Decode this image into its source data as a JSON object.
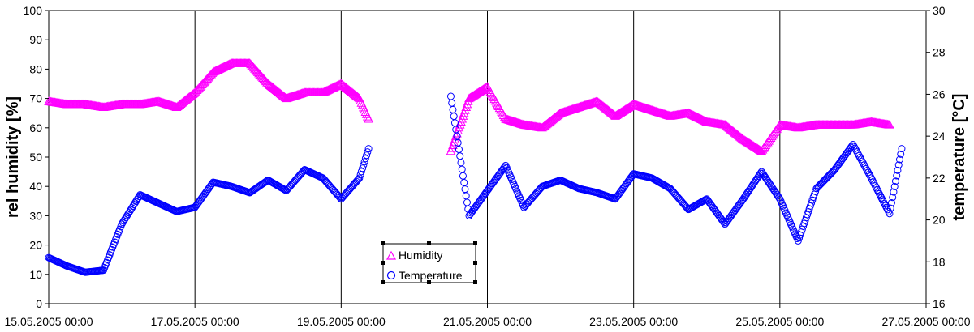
{
  "chart_data": {
    "type": "scatter",
    "title": "",
    "x_axis": {
      "type": "date",
      "range": [
        "15.05.2005 00:00",
        "27.05.2005 00:00"
      ],
      "ticks": [
        "15.05.2005 00:00",
        "17.05.2005 00:00",
        "19.05.2005 00:00",
        "21.05.2005 00:00",
        "23.05.2005 00:00",
        "25.05.2005 00:00",
        "27.05.2005 00:00"
      ],
      "gridlines": true
    },
    "y_axis_left": {
      "label": "rel humidity [%]",
      "range": [
        0,
        100
      ],
      "ticks": [
        "0",
        "10",
        "20",
        "30",
        "40",
        "50",
        "60",
        "70",
        "80",
        "90",
        "100"
      ]
    },
    "y_axis_right": {
      "label": "temperature [°C]",
      "range": [
        16,
        30
      ],
      "ticks": [
        "16",
        "18",
        "20",
        "22",
        "24",
        "26",
        "28",
        "30"
      ]
    },
    "legend": {
      "placement": "bottom-center",
      "items": [
        "Humidity",
        "Temperature"
      ]
    },
    "series": [
      {
        "name": "Humidity",
        "axis": "left",
        "marker": "triangle",
        "color": "#ff00ff",
        "points": [
          [
            "15.05.2005 00:00",
            69
          ],
          [
            "15.05.2005 06:00",
            68
          ],
          [
            "15.05.2005 12:00",
            68
          ],
          [
            "15.05.2005 18:00",
            67
          ],
          [
            "16.05.2005 00:00",
            68
          ],
          [
            "16.05.2005 06:00",
            68
          ],
          [
            "16.05.2005 12:00",
            69
          ],
          [
            "16.05.2005 18:00",
            67
          ],
          [
            "17.05.2005 00:00",
            72
          ],
          [
            "17.05.2005 06:00",
            79
          ],
          [
            "17.05.2005 12:00",
            82
          ],
          [
            "17.05.2005 18:00",
            82
          ],
          [
            "18.05.2005 00:00",
            75
          ],
          [
            "18.05.2005 06:00",
            70
          ],
          [
            "18.05.2005 12:00",
            72
          ],
          [
            "18.05.2005 18:00",
            72
          ],
          [
            "19.05.2005 00:00",
            75
          ],
          [
            "19.05.2005 06:00",
            70
          ],
          [
            "19.05.2005 09:00",
            63
          ],
          [
            "20.05.2005 12:00",
            52
          ],
          [
            "20.05.2005 18:00",
            70
          ],
          [
            "21.05.2005 00:00",
            74
          ],
          [
            "21.05.2005 06:00",
            63
          ],
          [
            "21.05.2005 12:00",
            61
          ],
          [
            "21.05.2005 18:00",
            60
          ],
          [
            "22.05.2005 00:00",
            65
          ],
          [
            "22.05.2005 06:00",
            67
          ],
          [
            "22.05.2005 12:00",
            69
          ],
          [
            "22.05.2005 18:00",
            64
          ],
          [
            "23.05.2005 00:00",
            68
          ],
          [
            "23.05.2005 06:00",
            66
          ],
          [
            "23.05.2005 12:00",
            64
          ],
          [
            "23.05.2005 18:00",
            65
          ],
          [
            "24.05.2005 00:00",
            62
          ],
          [
            "24.05.2005 06:00",
            61
          ],
          [
            "24.05.2005 12:00",
            56
          ],
          [
            "24.05.2005 18:00",
            52
          ],
          [
            "25.05.2005 00:00",
            61
          ],
          [
            "25.05.2005 06:00",
            60
          ],
          [
            "25.05.2005 12:00",
            61
          ],
          [
            "25.05.2005 18:00",
            61
          ],
          [
            "26.05.2005 00:00",
            61
          ],
          [
            "26.05.2005 06:00",
            62
          ],
          [
            "26.05.2005 12:00",
            61
          ]
        ]
      },
      {
        "name": "Temperature",
        "axis": "right",
        "marker": "circle",
        "color": "#0000ff",
        "points": [
          [
            "15.05.2005 00:00",
            18.2
          ],
          [
            "15.05.2005 06:00",
            17.8
          ],
          [
            "15.05.2005 12:00",
            17.5
          ],
          [
            "15.05.2005 18:00",
            17.6
          ],
          [
            "16.05.2005 00:00",
            19.8
          ],
          [
            "16.05.2005 06:00",
            21.2
          ],
          [
            "16.05.2005 12:00",
            20.8
          ],
          [
            "16.05.2005 18:00",
            20.4
          ],
          [
            "17.05.2005 00:00",
            20.6
          ],
          [
            "17.05.2005 06:00",
            21.8
          ],
          [
            "17.05.2005 12:00",
            21.6
          ],
          [
            "17.05.2005 18:00",
            21.3
          ],
          [
            "18.05.2005 00:00",
            21.9
          ],
          [
            "18.05.2005 06:00",
            21.4
          ],
          [
            "18.05.2005 12:00",
            22.4
          ],
          [
            "18.05.2005 18:00",
            22.0
          ],
          [
            "19.05.2005 00:00",
            21.0
          ],
          [
            "19.05.2005 06:00",
            22.0
          ],
          [
            "19.05.2005 09:00",
            23.4
          ],
          [
            "20.05.2005 12:00",
            25.9
          ],
          [
            "20.05.2005 18:00",
            20.2
          ],
          [
            "21.05.2005 00:00",
            21.4
          ],
          [
            "21.05.2005 06:00",
            22.6
          ],
          [
            "21.05.2005 12:00",
            20.6
          ],
          [
            "21.05.2005 18:00",
            21.6
          ],
          [
            "22.05.2005 00:00",
            21.9
          ],
          [
            "22.05.2005 06:00",
            21.5
          ],
          [
            "22.05.2005 12:00",
            21.3
          ],
          [
            "22.05.2005 18:00",
            21.0
          ],
          [
            "23.05.2005 00:00",
            22.2
          ],
          [
            "23.05.2005 06:00",
            22.0
          ],
          [
            "23.05.2005 12:00",
            21.5
          ],
          [
            "23.05.2005 18:00",
            20.5
          ],
          [
            "24.05.2005 00:00",
            21.0
          ],
          [
            "24.05.2005 06:00",
            19.8
          ],
          [
            "24.05.2005 12:00",
            21.0
          ],
          [
            "24.05.2005 18:00",
            22.3
          ],
          [
            "25.05.2005 00:00",
            21.0
          ],
          [
            "25.05.2005 06:00",
            19.0
          ],
          [
            "25.05.2005 12:00",
            21.5
          ],
          [
            "25.05.2005 18:00",
            22.4
          ],
          [
            "26.05.2005 00:00",
            23.6
          ],
          [
            "26.05.2005 06:00",
            22.0
          ],
          [
            "26.05.2005 12:00",
            20.3
          ],
          [
            "26.05.2005 16:00",
            23.4
          ]
        ]
      }
    ]
  }
}
